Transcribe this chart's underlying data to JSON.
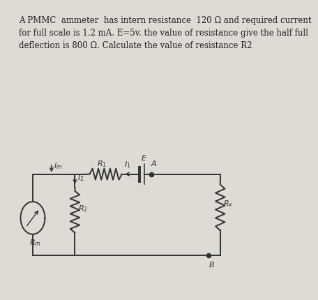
{
  "bg_color": "#c8c3b8",
  "text_bg": "#b8b3a8",
  "text_problem": "A PMMC  ammeter  has intern resistance  120 Ω and required current\nfor full scale is 1.2 mA. E=5v. the value of resistance give the half full\ndeflection is 800 Ω. Calculate the value of resistance R2",
  "text_fontsize": 8.5,
  "circuit_labels": {
    "Im": "I_m",
    "I2": "I_2",
    "Rm": "R_m",
    "R2": "R_2",
    "R1": "R_1",
    "I1": "I_1",
    "E": "E",
    "A": "A",
    "B": "B",
    "Rx": "R_x"
  }
}
